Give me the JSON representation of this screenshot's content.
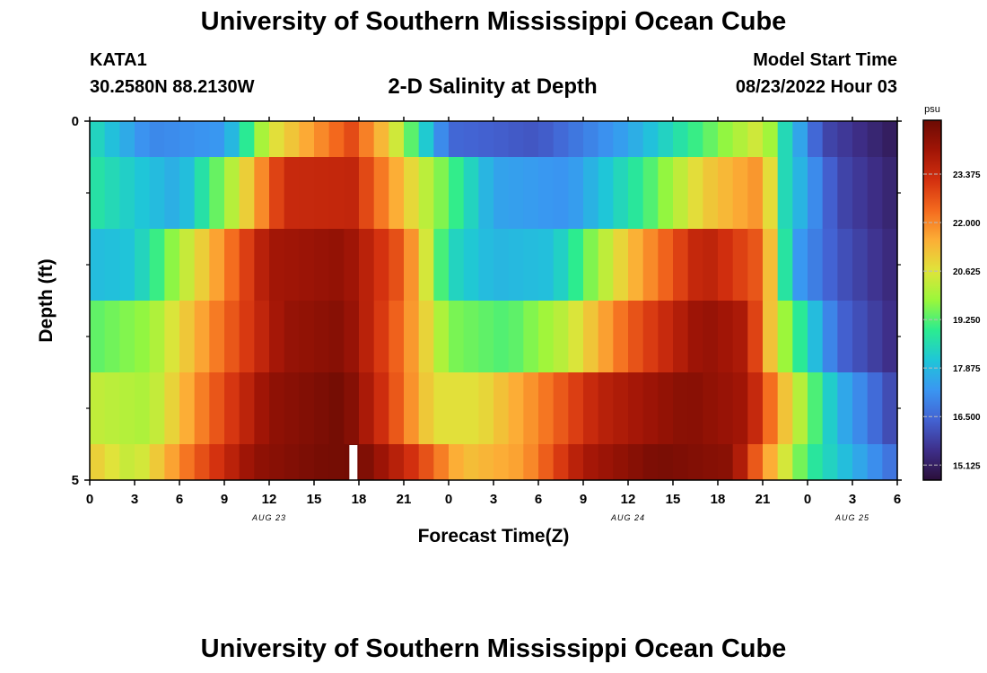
{
  "page": {
    "title_top": "University of Southern Mississippi Ocean Cube",
    "title_bottom": "University of Southern Mississippi Ocean Cube",
    "station": "KATA1",
    "location": "30.2580N  88.2130W",
    "subtitle": "2-D Salinity at Depth",
    "model_start_label": "Model Start Time",
    "model_start_value": "08/23/2022 Hour 03"
  },
  "colors": {
    "scale": [
      "#2b0f3a",
      "#3e2f8a",
      "#4362d2",
      "#3a96f2",
      "#1fc6d8",
      "#2bec90",
      "#9af73b",
      "#e0e33a",
      "#fcae36",
      "#f46a1e",
      "#d3300f",
      "#a11506",
      "#6c0b04"
    ],
    "marker": "#ffffff",
    "grid": "#bbbbbb"
  },
  "chart_data": {
    "type": "heatmap",
    "title": "2-D Salinity at Depth",
    "xlabel": "Forecast Time(Z)",
    "ylabel": "Depth (ft)",
    "x_range_hours": [
      0,
      54
    ],
    "depth_range_ft": [
      0,
      5
    ],
    "x_tick_hours": [
      0,
      3,
      6,
      9,
      12,
      15,
      18,
      21,
      24,
      27,
      30,
      33,
      36,
      39,
      42,
      45,
      48,
      51,
      54
    ],
    "x_tick_labels": [
      "0",
      "3",
      "6",
      "9",
      "12",
      "15",
      "18",
      "21",
      "0",
      "3",
      "6",
      "9",
      "12",
      "15",
      "18",
      "21",
      "0",
      "3",
      "6"
    ],
    "y_tick_labels": [
      {
        "depth": 0,
        "label": "0"
      },
      {
        "depth": 5,
        "label": "5"
      }
    ],
    "y_minor_ticks_ft": [
      1,
      2,
      3,
      4
    ],
    "date_labels": [
      {
        "hour": 12,
        "label": "AUG 23"
      },
      {
        "hour": 36,
        "label": "AUG 24"
      },
      {
        "hour": 51,
        "label": "AUG 25"
      }
    ],
    "colorbar": {
      "unit": "psu",
      "min": 14.7,
      "max": 24.9,
      "ticks": [
        "15.125",
        "16.500",
        "17.875",
        "19.250",
        "20.625",
        "22.000",
        "23.375"
      ]
    },
    "current_time_marker_hour": 17.6,
    "rows": [
      {
        "depth_from": 0.0,
        "depth_to": 0.5,
        "hours": [
          0,
          4,
          9,
          12,
          17.5,
          20,
          24,
          30,
          36,
          45,
          46.5,
          49,
          54
        ],
        "psu": [
          18.6,
          17.0,
          17.3,
          20.5,
          22.8,
          21.0,
          16.5,
          16.2,
          17.5,
          20.6,
          18.5,
          16.0,
          15.0
        ]
      },
      {
        "depth_from": 0.5,
        "depth_to": 1.5,
        "hours": [
          0,
          6,
          10,
          13,
          17.5,
          22,
          27,
          32,
          37,
          41,
          45,
          46.5,
          50,
          54
        ],
        "psu": [
          18.8,
          17.6,
          20.5,
          23.4,
          23.5,
          20.5,
          17.5,
          17.2,
          19.0,
          21.0,
          21.9,
          18.5,
          16.0,
          15.2
        ]
      },
      {
        "depth_from": 1.5,
        "depth_to": 2.5,
        "hours": [
          0,
          3,
          8,
          12,
          17,
          21,
          24,
          27,
          31,
          36,
          41,
          45,
          47,
          50,
          54
        ],
        "psu": [
          17.9,
          18.1,
          21.3,
          24.0,
          24.3,
          22.5,
          18.5,
          17.8,
          18.0,
          21.2,
          23.7,
          22.5,
          17.5,
          16.2,
          15.3
        ]
      },
      {
        "depth_from": 2.5,
        "depth_to": 3.5,
        "hours": [
          0,
          4,
          9,
          13,
          17,
          21,
          24,
          28,
          32,
          36,
          41,
          44,
          46,
          50,
          54
        ],
        "psu": [
          19.3,
          19.8,
          22.4,
          24.2,
          24.5,
          22.2,
          19.6,
          19.2,
          20.3,
          22.5,
          24.3,
          23.8,
          20.3,
          16.5,
          15.4
        ]
      },
      {
        "depth_from": 3.5,
        "depth_to": 4.5,
        "hours": [
          0,
          4,
          8,
          12,
          17,
          20,
          23,
          26,
          30,
          34,
          40,
          44,
          47,
          50,
          54
        ],
        "psu": [
          20.3,
          20.0,
          22.4,
          24.3,
          24.8,
          23.0,
          20.7,
          20.7,
          22.0,
          23.6,
          24.5,
          24.0,
          20.6,
          17.8,
          15.8
        ]
      },
      {
        "depth_from": 4.5,
        "depth_to": 5.0,
        "hours": [
          0,
          3,
          7,
          11,
          15,
          18,
          22,
          25,
          29,
          33,
          38,
          43,
          45,
          48,
          54
        ],
        "psu": [
          21.1,
          20.2,
          22.5,
          24.3,
          24.7,
          24.8,
          23.0,
          21.2,
          21.7,
          23.9,
          24.7,
          24.4,
          22.0,
          19.0,
          16.5
        ]
      }
    ]
  }
}
